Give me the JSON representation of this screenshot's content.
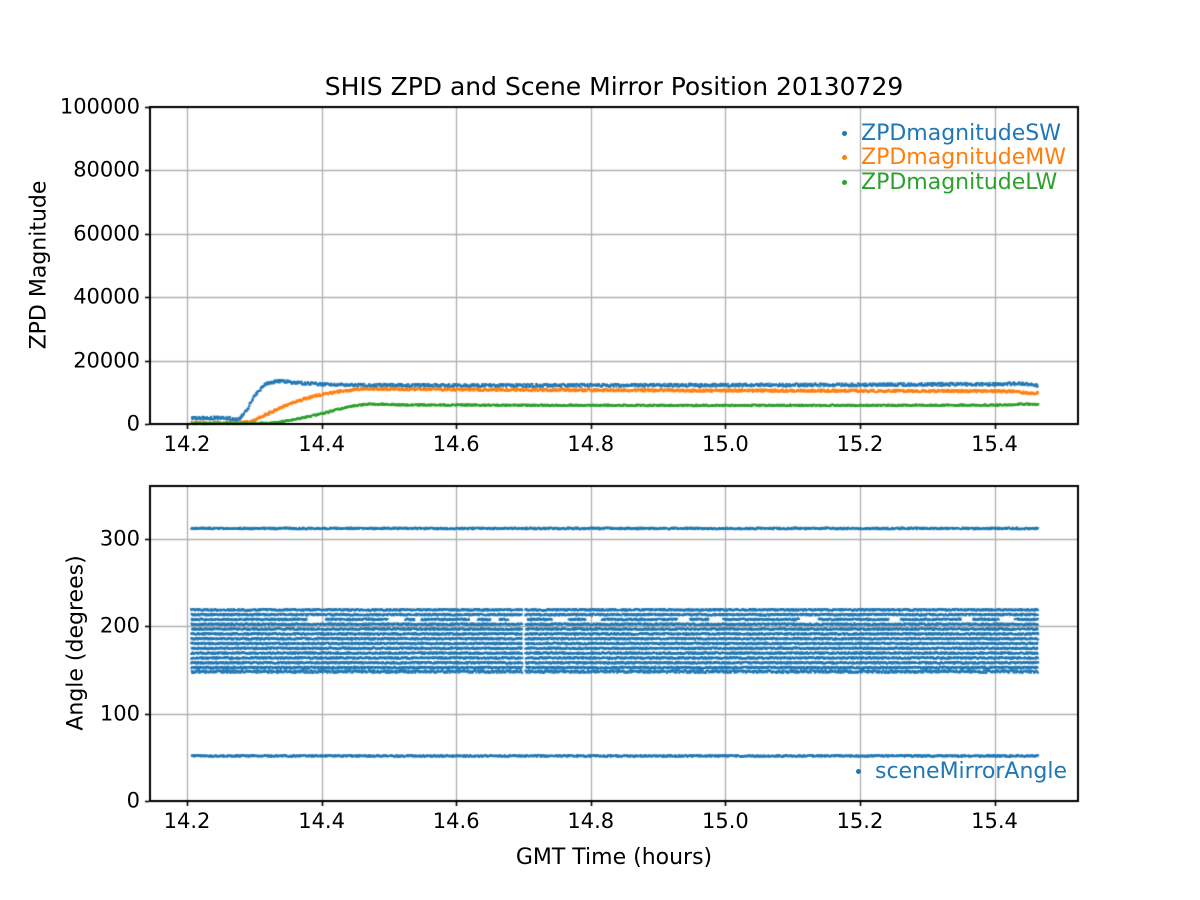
{
  "figure": {
    "background": "#ffffff",
    "text_color": "#000000",
    "grid_color": "#b0b0b0",
    "spine_color": "#000000"
  },
  "chart_data": [
    {
      "type": "scatter",
      "title": "SHIS ZPD and Scene Mirror Position 20130729",
      "xlabel": "",
      "ylabel": "ZPD Magnitude",
      "xlim": [
        14.145,
        15.524
      ],
      "ylim": [
        0,
        100000
      ],
      "xticks": [
        14.2,
        14.4,
        14.6,
        14.8,
        15.0,
        15.2,
        15.4
      ],
      "xtick_labels": [
        "14.2",
        "14.4",
        "14.6",
        "14.8",
        "15.0",
        "15.2",
        "15.4"
      ],
      "yticks": [
        0,
        20000,
        40000,
        60000,
        80000,
        100000
      ],
      "ytick_labels": [
        "0",
        "20000",
        "40000",
        "60000",
        "80000",
        "100000"
      ],
      "grid": true,
      "legend": {
        "location": "upper right",
        "entries": [
          {
            "label": "ZPDmagnitudeSW",
            "color": "#1f77b4"
          },
          {
            "label": "ZPDmagnitudeMW",
            "color": "#ff7f0e"
          },
          {
            "label": "ZPDmagnitudeLW",
            "color": "#2ca02c"
          }
        ]
      },
      "x_data_range": [
        14.207,
        15.465
      ],
      "series": [
        {
          "name": "ZPDmagnitudeSW",
          "color": "#1f77b4",
          "marker": "dot",
          "spread": 480,
          "keypoints": [
            [
              14.207,
              1900
            ],
            [
              14.262,
              1850
            ],
            [
              14.27,
              1300
            ],
            [
              14.278,
              1550
            ],
            [
              14.288,
              4200
            ],
            [
              14.3,
              8600
            ],
            [
              14.312,
              11900
            ],
            [
              14.325,
              13250
            ],
            [
              14.34,
              13500
            ],
            [
              14.36,
              13100
            ],
            [
              14.4,
              12500
            ],
            [
              14.44,
              12250
            ],
            [
              14.6,
              12150
            ],
            [
              14.8,
              12200
            ],
            [
              15.0,
              12250
            ],
            [
              15.2,
              12350
            ],
            [
              15.32,
              12500
            ],
            [
              15.4,
              12550
            ],
            [
              15.44,
              12700
            ],
            [
              15.455,
              12450
            ],
            [
              15.465,
              12050
            ]
          ]
        },
        {
          "name": "ZPDmagnitudeMW",
          "color": "#ff7f0e",
          "marker": "dot",
          "spread": 400,
          "keypoints": [
            [
              14.207,
              380
            ],
            [
              14.28,
              350
            ],
            [
              14.295,
              950
            ],
            [
              14.32,
              3200
            ],
            [
              14.35,
              6200
            ],
            [
              14.39,
              8900
            ],
            [
              14.43,
              10450
            ],
            [
              14.465,
              11150
            ],
            [
              14.52,
              11000
            ],
            [
              14.7,
              10750
            ],
            [
              15.0,
              10550
            ],
            [
              15.3,
              10400
            ],
            [
              15.42,
              10350
            ],
            [
              15.445,
              9900
            ],
            [
              15.458,
              9650
            ],
            [
              15.465,
              9800
            ]
          ]
        },
        {
          "name": "ZPDmagnitudeLW",
          "color": "#2ca02c",
          "marker": "dot",
          "spread": 250,
          "keypoints": [
            [
              14.207,
              180
            ],
            [
              14.3,
              180
            ],
            [
              14.33,
              420
            ],
            [
              14.36,
              1350
            ],
            [
              14.4,
              3250
            ],
            [
              14.44,
              5450
            ],
            [
              14.468,
              6300
            ],
            [
              14.52,
              6050
            ],
            [
              14.7,
              5900
            ],
            [
              15.0,
              5850
            ],
            [
              15.3,
              5900
            ],
            [
              15.42,
              5950
            ],
            [
              15.44,
              6300
            ],
            [
              15.455,
              6250
            ],
            [
              15.465,
              6100
            ]
          ]
        }
      ]
    },
    {
      "type": "scatter",
      "title": "",
      "xlabel": "GMT Time (hours)",
      "ylabel": "Angle (degrees)",
      "xlim": [
        14.145,
        15.524
      ],
      "ylim": [
        0,
        360
      ],
      "xticks": [
        14.2,
        14.4,
        14.6,
        14.8,
        15.0,
        15.2,
        15.4
      ],
      "xtick_labels": [
        "14.2",
        "14.4",
        "14.6",
        "14.8",
        "15.0",
        "15.2",
        "15.4"
      ],
      "yticks": [
        0,
        100,
        200,
        300
      ],
      "ytick_labels": [
        "0",
        "100",
        "200",
        "300"
      ],
      "grid": true,
      "legend": {
        "location": "lower right",
        "entries": [
          {
            "label": "sceneMirrorAngle",
            "color": "#1f77b4"
          }
        ]
      },
      "x_data_range": [
        14.207,
        15.465
      ],
      "series": [
        {
          "name": "sceneMirrorAngle",
          "color": "#1f77b4",
          "marker": "dot",
          "spread": 1.0,
          "single_angles": [
            311.5,
            51.5
          ],
          "band_angles": [
            218.5,
            213.0,
            207.5,
            202.0,
            196.5,
            191.0,
            185.5,
            180.0,
            174.5,
            169.0,
            163.5,
            158.0,
            152.5,
            148.0
          ],
          "gapped_angle": 207.5,
          "band_gap_x": [
            14.699,
            14.7035
          ]
        }
      ]
    }
  ]
}
